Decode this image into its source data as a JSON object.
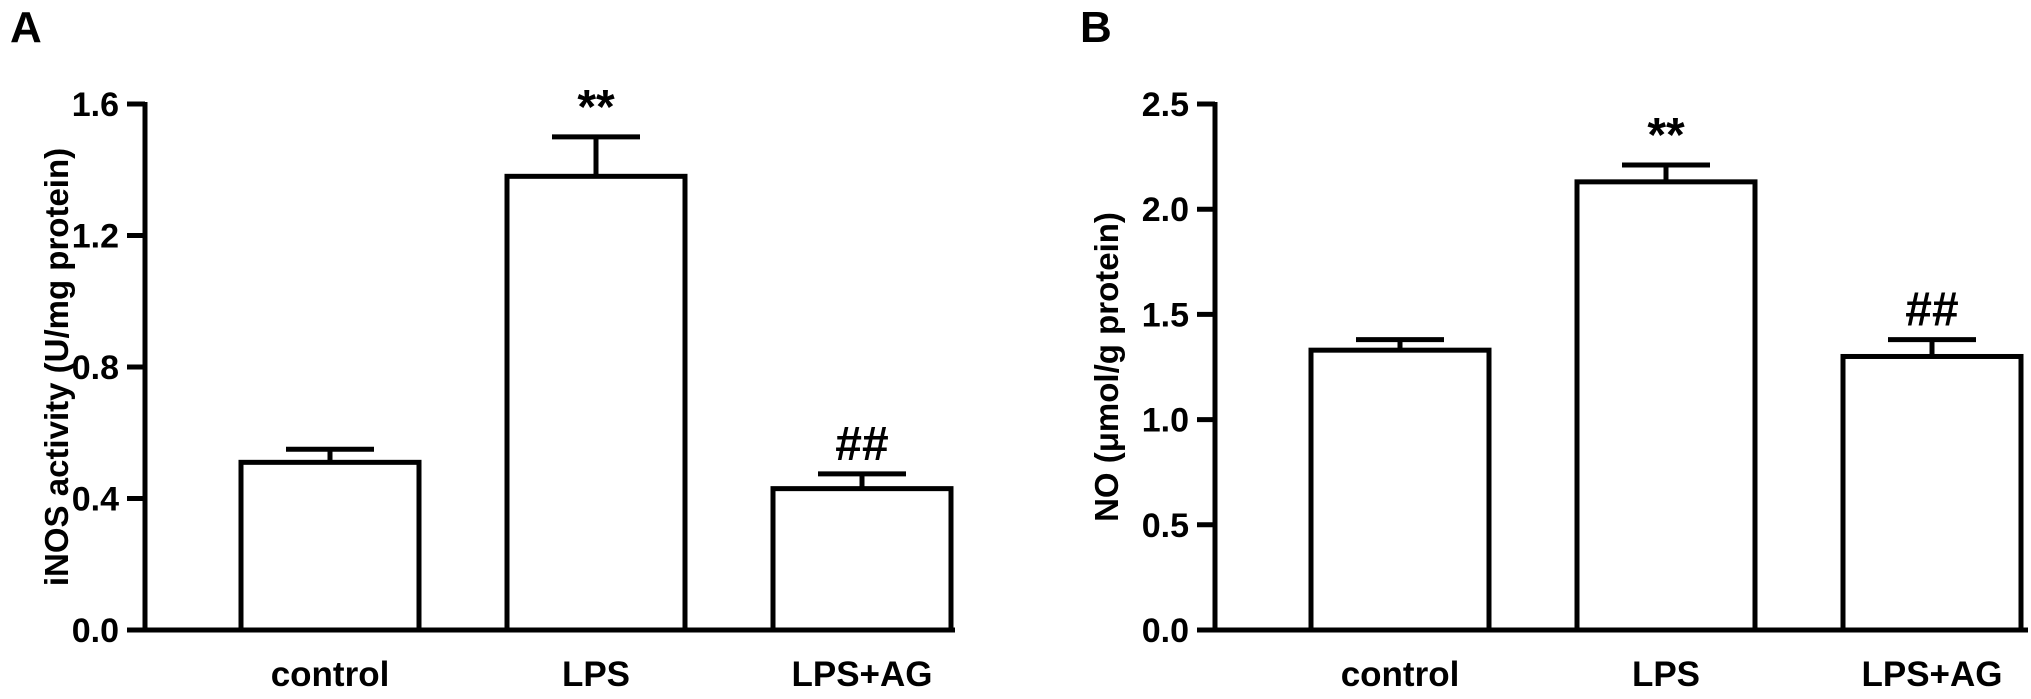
{
  "chart_data": [
    {
      "panel": "A",
      "type": "bar",
      "categories": [
        "control",
        "LPS",
        "LPS+AG"
      ],
      "values": [
        0.51,
        1.38,
        0.43
      ],
      "errors": [
        0.04,
        0.12,
        0.045
      ],
      "annotations": [
        "",
        "**",
        "##"
      ],
      "ylabel": "iNOS activity (U/mg protein)",
      "xlabel": "",
      "ylim": [
        0,
        1.6
      ],
      "yticks": [
        0,
        0.4,
        0.8,
        1.2,
        1.6
      ],
      "ytick_labels": [
        "0.0",
        "0.4",
        "0.8",
        "1.2",
        "1.6"
      ],
      "grid": false,
      "bar_fill": "#ffffff",
      "bar_stroke": "#000000"
    },
    {
      "panel": "B",
      "type": "bar",
      "categories": [
        "control",
        "LPS",
        "LPS+AG"
      ],
      "values": [
        1.33,
        2.13,
        1.3
      ],
      "errors": [
        0.05,
        0.08,
        0.08
      ],
      "annotations": [
        "",
        "**",
        "##"
      ],
      "ylabel": "NO (μmol/g protein)",
      "xlabel": "",
      "ylim": [
        0,
        2.5
      ],
      "yticks": [
        0,
        0.5,
        1.0,
        1.5,
        2.0,
        2.5
      ],
      "ytick_labels": [
        "0.0",
        "0.5",
        "1.0",
        "1.5",
        "2.0",
        "2.5"
      ],
      "grid": false,
      "bar_fill": "#ffffff",
      "bar_stroke": "#000000"
    }
  ]
}
